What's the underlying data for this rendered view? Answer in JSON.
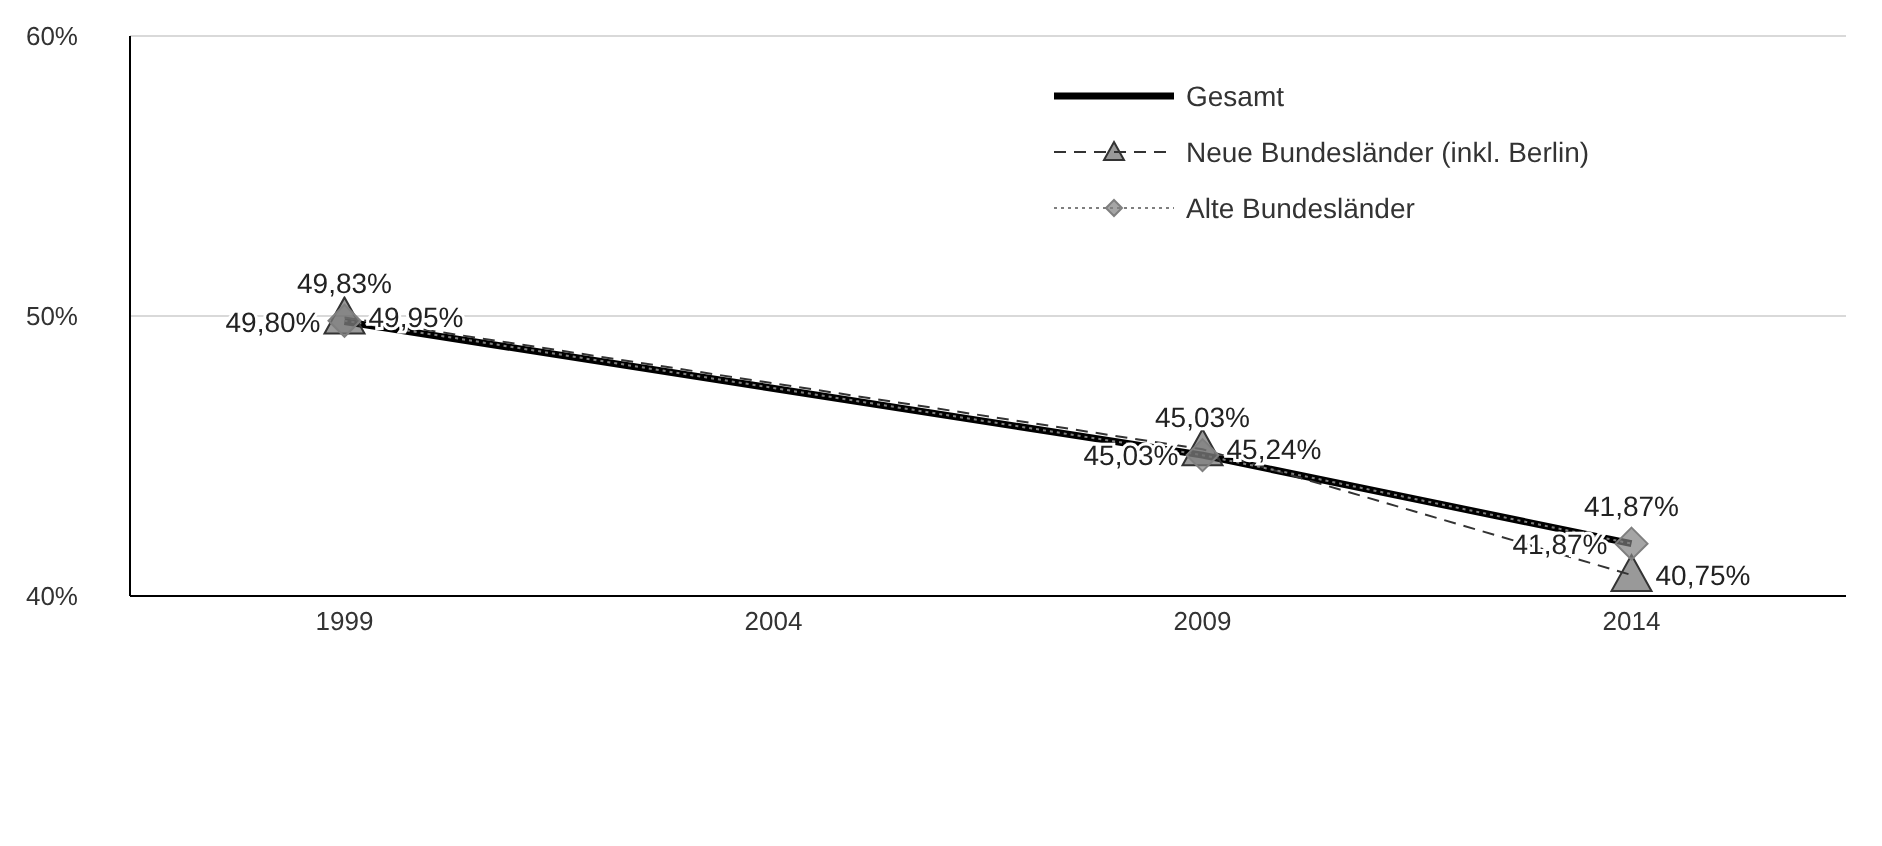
{
  "chart_data": {
    "type": "line",
    "categories": [
      "1999",
      "2004",
      "2009",
      "2014"
    ],
    "ylim": [
      40,
      60
    ],
    "yticks": [
      {
        "value": 40,
        "label": "40%"
      },
      {
        "value": 50,
        "label": "50%"
      },
      {
        "value": 60,
        "label": "60%"
      }
    ],
    "grid": "y",
    "legend": "top right",
    "series": [
      {
        "name": "Gesamt",
        "color": "#000000",
        "values": [
          49.8,
          null,
          45.03,
          41.87
        ],
        "value_labels": [
          "49,80%",
          null,
          "45,03%",
          "41,87%"
        ],
        "line_style": "solid",
        "marker": "none"
      },
      {
        "name": "Neue Bundesländer (inkl. Berlin)",
        "color": "#333333",
        "values": [
          49.95,
          null,
          45.24,
          40.75
        ],
        "value_labels": [
          "49,95%",
          null,
          "45,24%",
          "40,75%"
        ],
        "line_style": "dashed",
        "marker": "triangle"
      },
      {
        "name": "Alte Bundesländer",
        "color": "#7f7f7f",
        "values": [
          49.83,
          null,
          45.03,
          41.87
        ],
        "value_labels": [
          "49,83%",
          null,
          "45,03%",
          "41,87%"
        ],
        "line_style": "dotted",
        "marker": "diamond"
      }
    ]
  }
}
